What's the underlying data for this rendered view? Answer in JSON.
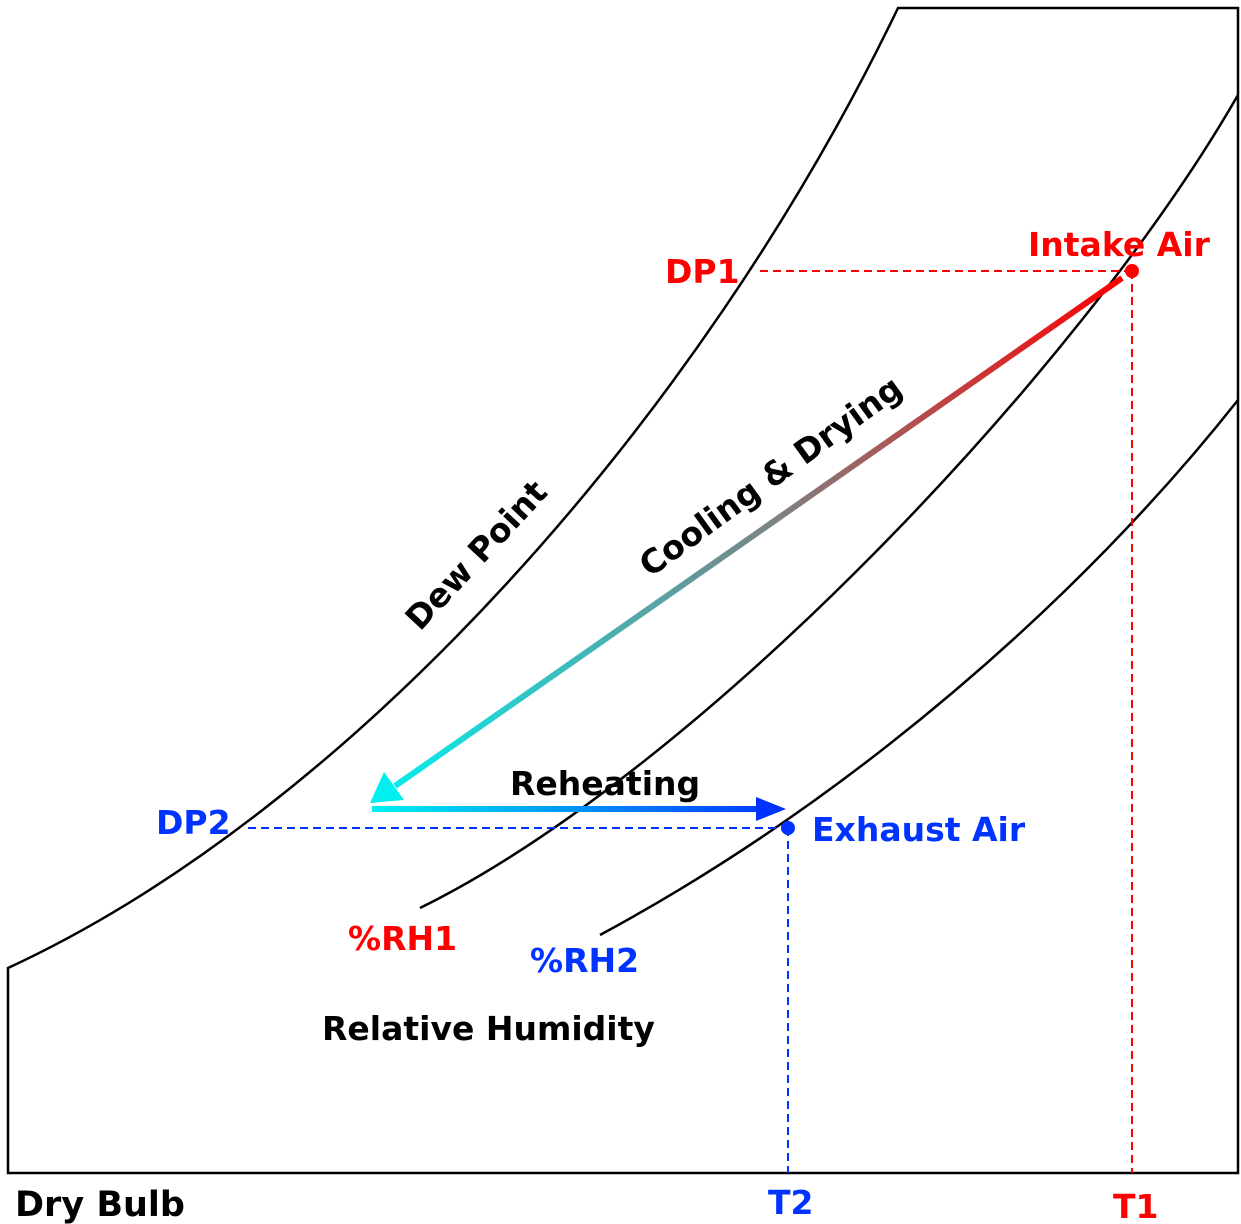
{
  "labels": {
    "intake_air": "Intake Air",
    "exhaust_air": "Exhaust Air",
    "dp1": "DP1",
    "dp2": "DP2",
    "t1": "T1",
    "t2": "T2",
    "rh1": "%RH1",
    "rh2": "%RH2",
    "dew_point": "Dew Point",
    "cooling_drying": "Cooling & Drying",
    "reheating": "Reheating",
    "relative_humidity": "Relative Humidity",
    "dry_bulb": "Dry Bulb"
  },
  "colors": {
    "intake": "#ff0000",
    "exhaust": "#0033ff",
    "cool": "#00f0f0",
    "mid": "#808080",
    "line": "#000000"
  }
}
